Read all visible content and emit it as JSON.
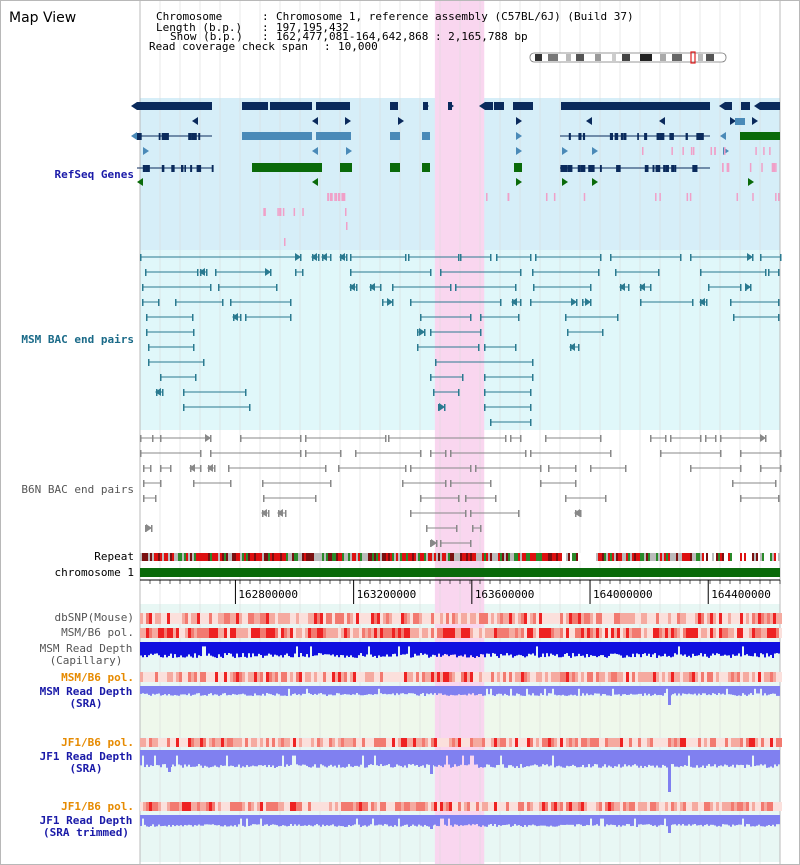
{
  "header": {
    "title": "Map View",
    "info_lines": [
      {
        "key": "Chromosome",
        "value": "Chromosome 1, reference assembly (C57BL/6J) (Build 37)"
      },
      {
        "key": "Length (b.p.)",
        "value": "197,195,432"
      },
      {
        "key": "Show (b.p.)",
        "value": "162,477,081-164,642,868 : 2,165,788 bp"
      },
      {
        "key": "Read coverage check span",
        "value": "10,000"
      }
    ]
  },
  "view": {
    "start": 162477081,
    "end": 164642868
  },
  "highlight": {
    "start": 163475000,
    "end": 163642000
  },
  "axis": {
    "ticks": [
      162800000,
      163200000,
      163600000,
      164000000,
      164400000
    ],
    "tick_labels": [
      "162800000",
      "163200000",
      "163600000",
      "164000000",
      "164400000"
    ]
  },
  "tracks": [
    {
      "id": "refseq",
      "label": "RefSeq Genes",
      "color": "#1a1aa8"
    },
    {
      "id": "msm-bac",
      "label": "MSM BAC end pairs",
      "color": "#1a6a88"
    },
    {
      "id": "b6n-bac",
      "label": "B6N BAC end pairs",
      "color": "#555555"
    },
    {
      "id": "repeat",
      "label": "Repeat",
      "color": "#000000"
    },
    {
      "id": "chromosome",
      "label": "chromosome 1",
      "color": "#000000"
    },
    {
      "id": "dbsnp",
      "label": "dbSNP(Mouse)",
      "color": "#555555"
    },
    {
      "id": "msm-b6-pol-1",
      "label": "MSM/B6 pol.",
      "color": "#555555"
    },
    {
      "id": "msm-depth-cap",
      "label": "MSM Read Depth\n(Capillary)",
      "color": "#555555"
    },
    {
      "id": "msm-b6-pol-2",
      "label": "MSM/B6 pol.",
      "color": "#e68a00"
    },
    {
      "id": "msm-depth-sra",
      "label": "MSM Read Depth\n(SRA)",
      "color": "#1a1aa8"
    },
    {
      "id": "jf1-b6-pol-1",
      "label": "JF1/B6 pol.",
      "color": "#e68a00"
    },
    {
      "id": "jf1-depth-sra",
      "label": "JF1 Read Depth\n(SRA)",
      "color": "#1a1aa8"
    },
    {
      "id": "jf1-b6-pol-2",
      "label": "JF1/B6 pol.",
      "color": "#e68a00"
    },
    {
      "id": "jf1-depth-trim",
      "label": "JF1 Read Depth\n(SRA trimmed)",
      "color": "#1a1aa8"
    }
  ],
  "colors": {
    "refseq_bg": "#d6eef8",
    "msm_bg": "#e0f7fa",
    "highlight": "#f9d6ef",
    "gene_dark": "#0a2a5c",
    "gene_mid": "#4a8ab8",
    "gene_green": "#0a6a0a",
    "est_pink": "#f0a0c8",
    "msm_pair": "#2a7a90",
    "b6n_pair": "#888888",
    "depth_dark": "#1010e0",
    "depth_light": "#8080f0",
    "pol_red": "#ee2222"
  }
}
